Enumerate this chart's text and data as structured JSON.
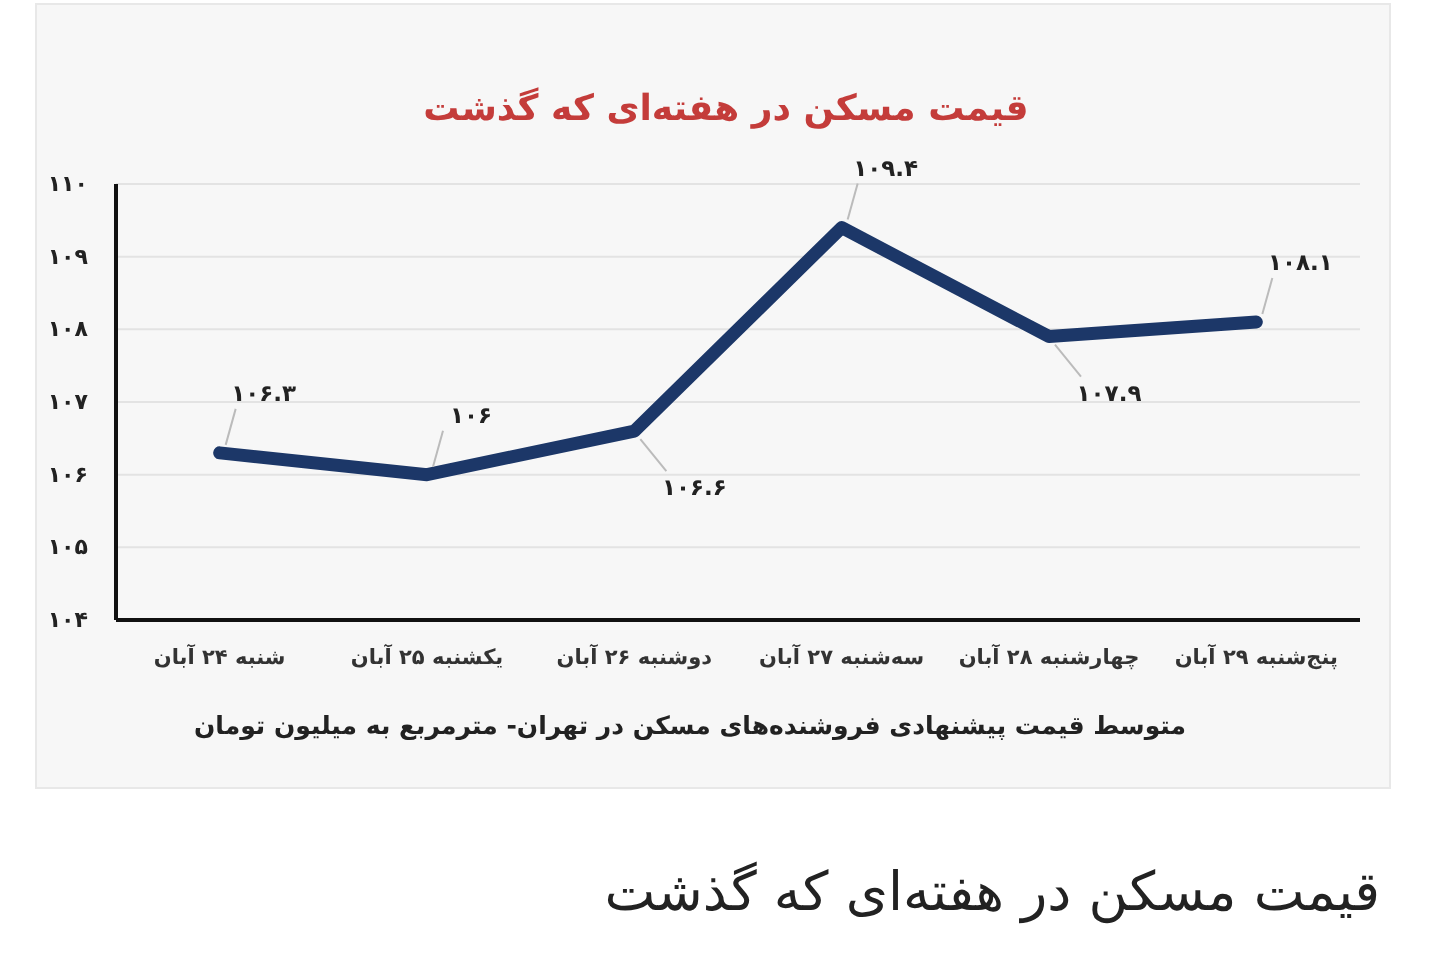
{
  "chart_data": {
    "type": "line",
    "title": "قیمت مسکن در هفته‌ای که گذشت",
    "xlabel": "متوسط قیمت پیشنهادی فروشنده‌های مسکن در تهران- مترمربع به میلیون تومان",
    "annotations": [
      "قیمت مسکن در هفته‌ای که گذشت"
    ],
    "categories": [
      "شنبه ۲۴ آبان",
      "یکشنبه ۲۵ آبان",
      "دوشنبه ۲۶ آبان",
      "سه‌شنبه ۲۷ آبان",
      "چهارشنبه ۲۸ آبان",
      "پنج‌شنبه ۲۹ آبان"
    ],
    "values": [
      106.3,
      106,
      106.6,
      109.4,
      107.9,
      108.1
    ],
    "color": "#1c3768",
    "value_labels": [
      "۱۰۶.۳",
      "۱۰۶",
      "۱۰۶.۶",
      "۱۰۹.۴",
      "۱۰۷.۹",
      "۱۰۸.۱"
    ],
    "ylim": [
      104,
      110
    ],
    "yticks": [
      {
        "value": 104,
        "label": "۱۰۴"
      },
      {
        "value": 105,
        "label": "۱۰۵"
      },
      {
        "value": 106,
        "label": "۱۰۶"
      },
      {
        "value": 107,
        "label": "۱۰۷"
      },
      {
        "value": 108,
        "label": "۱۰۸"
      },
      {
        "value": 109,
        "label": "۱۰۹"
      },
      {
        "value": 110,
        "label": "۱۱۰"
      }
    ],
    "grid": "y",
    "line_style": "solid"
  }
}
